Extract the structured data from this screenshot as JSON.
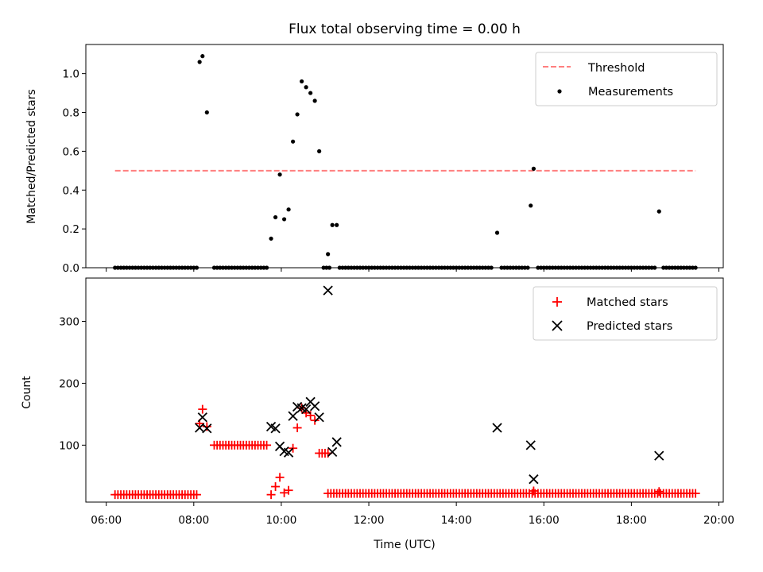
{
  "figure": {
    "title": "Flux total observing time = 0.00 h",
    "xlabel": "Time (UTC)"
  },
  "chart_data": [
    {
      "type": "scatter",
      "panel": "top",
      "ylabel": "Matched/Predicted stars",
      "xlim": [
        "05:32",
        "20:06"
      ],
      "ylim": [
        0.0,
        1.15
      ],
      "yticks": [
        "0.0",
        "0.2",
        "0.4",
        "0.6",
        "0.8",
        "1.0"
      ],
      "legend_placement": "upper right",
      "threshold": {
        "name": "Threshold",
        "value": 0.5,
        "x_range": [
          "06:12",
          "19:28"
        ],
        "color": "#ff7f7f",
        "style": "dashed"
      },
      "series": [
        {
          "name": "Measurements",
          "color": "#000000",
          "marker": "dot",
          "points": [
            [
              "08:08",
              1.06
            ],
            [
              "08:12",
              1.09
            ],
            [
              "08:18",
              0.8
            ],
            [
              "09:46",
              0.15
            ],
            [
              "09:52",
              0.26
            ],
            [
              "09:58",
              0.48
            ],
            [
              "10:04",
              0.25
            ],
            [
              "10:10",
              0.3
            ],
            [
              "10:16",
              0.65
            ],
            [
              "10:22",
              0.79
            ],
            [
              "10:28",
              0.96
            ],
            [
              "10:34",
              0.93
            ],
            [
              "10:40",
              0.9
            ],
            [
              "10:46",
              0.86
            ],
            [
              "10:52",
              0.6
            ],
            [
              "11:04",
              0.07
            ],
            [
              "11:10",
              0.22
            ],
            [
              "11:16",
              0.22
            ],
            [
              "14:56",
              0.18
            ],
            [
              "15:42",
              0.32
            ],
            [
              "15:46",
              0.51
            ],
            [
              "18:38",
              0.29
            ]
          ],
          "zero_runs": [
            {
              "start": "06:12",
              "end": "08:04",
              "step_min": 4
            },
            {
              "start": "08:28",
              "end": "09:40",
              "step_min": 4
            },
            {
              "start": "10:58",
              "end": "11:06",
              "step_min": 4
            },
            {
              "start": "11:20",
              "end": "14:50",
              "step_min": 4
            },
            {
              "start": "15:02",
              "end": "15:38",
              "step_min": 4
            },
            {
              "start": "15:52",
              "end": "18:32",
              "step_min": 4
            },
            {
              "start": "18:44",
              "end": "19:28",
              "step_min": 4
            }
          ]
        }
      ]
    },
    {
      "type": "scatter",
      "panel": "bottom",
      "ylabel": "Count",
      "xlim": [
        "05:32",
        "20:06"
      ],
      "ylim": [
        8,
        370
      ],
      "yticks": [
        "100",
        "200",
        "300"
      ],
      "xticks": [
        "06:00",
        "08:00",
        "10:00",
        "12:00",
        "14:00",
        "16:00",
        "18:00",
        "20:00"
      ],
      "legend_placement": "upper right",
      "series": [
        {
          "name": "Matched stars",
          "color": "#ff0000",
          "marker": "plus",
          "runs": [
            {
              "start": "06:12",
              "end": "08:04",
              "step_min": 4,
              "value": 20
            },
            {
              "start": "08:28",
              "end": "09:40",
              "step_min": 4,
              "value": 100
            },
            {
              "start": "10:52",
              "end": "11:04",
              "step_min": 4,
              "value": 87
            },
            {
              "start": "11:04",
              "end": "19:28",
              "step_min": 4,
              "value": 22
            }
          ],
          "points": [
            [
              "08:08",
              135
            ],
            [
              "08:12",
              158
            ],
            [
              "08:18",
              130
            ],
            [
              "09:46",
              20
            ],
            [
              "09:52",
              33
            ],
            [
              "09:58",
              48
            ],
            [
              "10:04",
              23
            ],
            [
              "10:10",
              27
            ],
            [
              "10:16",
              95
            ],
            [
              "10:22",
              128
            ],
            [
              "10:28",
              160
            ],
            [
              "10:34",
              152
            ],
            [
              "10:40",
              148
            ],
            [
              "10:46",
              140
            ],
            [
              "15:46",
              26
            ],
            [
              "18:38",
              25
            ]
          ]
        },
        {
          "name": "Predicted stars",
          "color": "#000000",
          "marker": "x",
          "points": [
            [
              "08:08",
              128
            ],
            [
              "08:12",
              145
            ],
            [
              "08:18",
              127
            ],
            [
              "09:46",
              130
            ],
            [
              "09:52",
              127
            ],
            [
              "09:58",
              98
            ],
            [
              "10:04",
              90
            ],
            [
              "10:10",
              88
            ],
            [
              "10:16",
              147
            ],
            [
              "10:22",
              162
            ],
            [
              "10:28",
              160
            ],
            [
              "10:34",
              158
            ],
            [
              "10:40",
              170
            ],
            [
              "10:46",
              163
            ],
            [
              "10:52",
              145
            ],
            [
              "11:04",
              350
            ],
            [
              "11:10",
              89
            ],
            [
              "11:16",
              105
            ],
            [
              "14:56",
              128
            ],
            [
              "15:42",
              100
            ],
            [
              "15:46",
              45
            ],
            [
              "18:38",
              83
            ]
          ]
        }
      ]
    }
  ]
}
